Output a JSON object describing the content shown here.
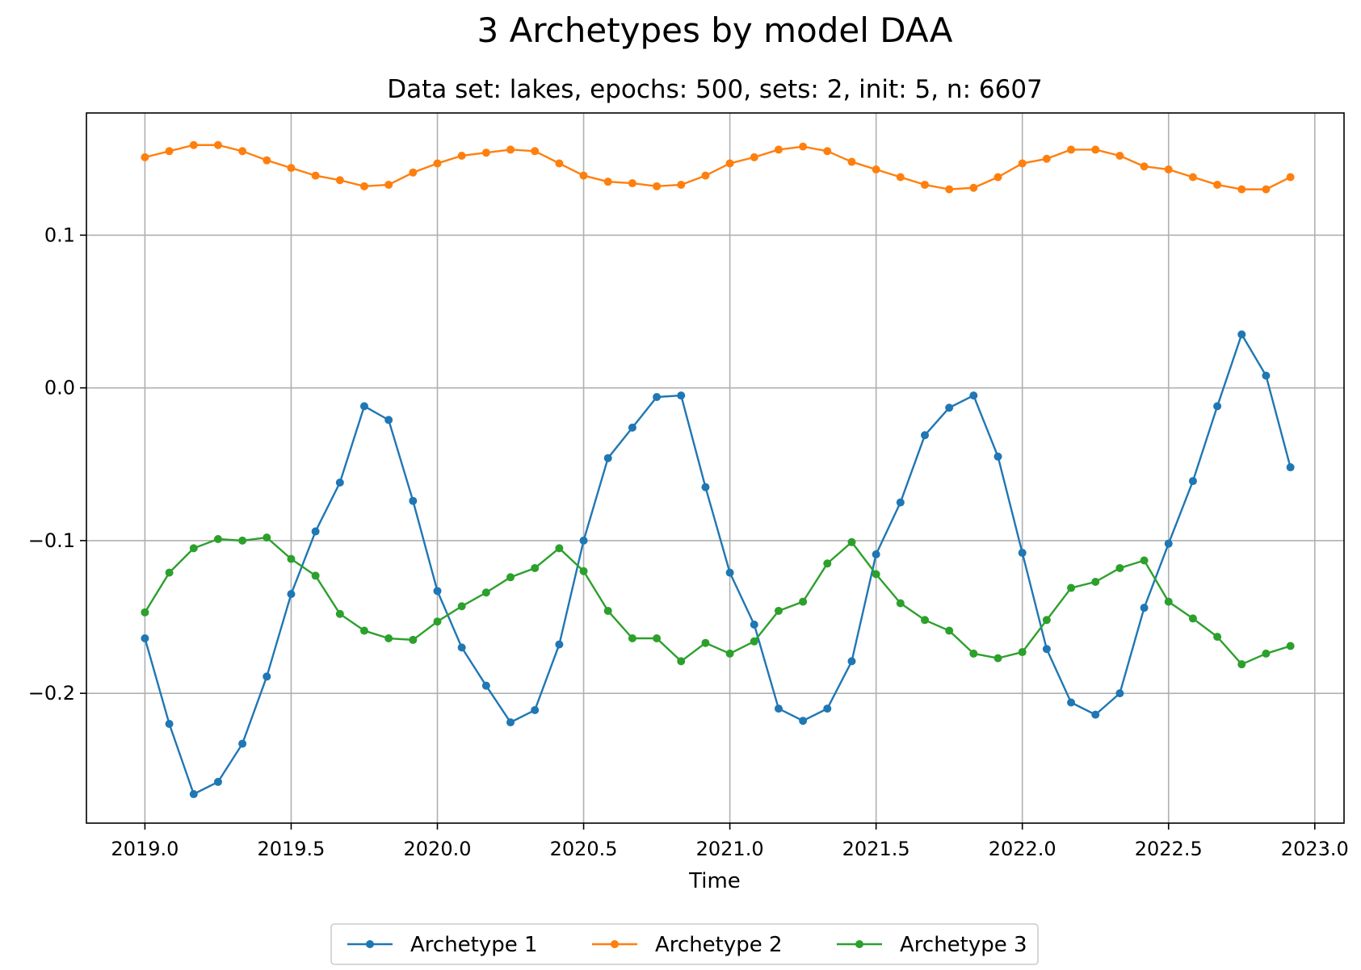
{
  "chart_data": {
    "type": "line",
    "title": "3 Archetypes by model DAA",
    "subtitle": "Data set: lakes, epochs: 500, sets: 2, init: 5, n: 6607",
    "xlabel": "Time",
    "ylabel": "",
    "xlim": [
      2018.8,
      2023.1
    ],
    "ylim": [
      -0.285,
      0.18
    ],
    "x_ticks": [
      2019.0,
      2019.5,
      2020.0,
      2020.5,
      2021.0,
      2021.5,
      2022.0,
      2022.5,
      2023.0
    ],
    "x_tick_labels": [
      "2019.0",
      "2019.5",
      "2020.0",
      "2020.5",
      "2021.0",
      "2021.5",
      "2022.0",
      "2022.5",
      "2023.0"
    ],
    "y_ticks": [
      0.1,
      0.0,
      -0.1,
      -0.2
    ],
    "y_tick_labels": [
      "0.1",
      "0.0",
      "−0.1",
      "−0.2"
    ],
    "grid": true,
    "legend_position": "bottom-center",
    "x": [
      2019.0,
      2019.0833,
      2019.1667,
      2019.25,
      2019.3333,
      2019.4167,
      2019.5,
      2019.5833,
      2019.6667,
      2019.75,
      2019.8333,
      2019.9167,
      2020.0,
      2020.0833,
      2020.1667,
      2020.25,
      2020.3333,
      2020.4167,
      2020.5,
      2020.5833,
      2020.6667,
      2020.75,
      2020.8333,
      2020.9167,
      2021.0,
      2021.0833,
      2021.1667,
      2021.25,
      2021.3333,
      2021.4167,
      2021.5,
      2021.5833,
      2021.6667,
      2021.75,
      2021.8333,
      2021.9167,
      2022.0,
      2022.0833,
      2022.1667,
      2022.25,
      2022.3333,
      2022.4167,
      2022.5,
      2022.5833,
      2022.6667,
      2022.75,
      2022.8333,
      2022.9167
    ],
    "series": [
      {
        "name": "Archetype 1",
        "color": "#1f77b4",
        "values": [
          -0.164,
          -0.22,
          -0.266,
          -0.258,
          -0.233,
          -0.189,
          -0.135,
          -0.094,
          -0.062,
          -0.012,
          -0.021,
          -0.074,
          -0.133,
          -0.17,
          -0.195,
          -0.219,
          -0.211,
          -0.168,
          -0.1,
          -0.046,
          -0.026,
          -0.006,
          -0.005,
          -0.065,
          -0.121,
          -0.155,
          -0.21,
          -0.218,
          -0.21,
          -0.179,
          -0.109,
          -0.075,
          -0.031,
          -0.013,
          -0.005,
          -0.045,
          -0.108,
          -0.171,
          -0.206,
          -0.214,
          -0.2,
          -0.144,
          -0.102,
          -0.061,
          -0.012,
          0.035,
          0.008,
          -0.052
        ]
      },
      {
        "name": "Archetype 2",
        "color": "#ff7f0e",
        "values": [
          0.151,
          0.155,
          0.159,
          0.159,
          0.155,
          0.149,
          0.144,
          0.139,
          0.136,
          0.132,
          0.133,
          0.141,
          0.147,
          0.152,
          0.154,
          0.156,
          0.155,
          0.147,
          0.139,
          0.135,
          0.134,
          0.132,
          0.133,
          0.139,
          0.147,
          0.151,
          0.156,
          0.158,
          0.155,
          0.148,
          0.143,
          0.138,
          0.133,
          0.13,
          0.131,
          0.138,
          0.147,
          0.15,
          0.156,
          0.156,
          0.152,
          0.145,
          0.143,
          0.138,
          0.133,
          0.13,
          0.13,
          0.138
        ]
      },
      {
        "name": "Archetype 3",
        "color": "#2ca02c",
        "values": [
          -0.147,
          -0.121,
          -0.105,
          -0.099,
          -0.1,
          -0.098,
          -0.112,
          -0.123,
          -0.148,
          -0.159,
          -0.164,
          -0.165,
          -0.153,
          -0.143,
          -0.134,
          -0.124,
          -0.118,
          -0.105,
          -0.12,
          -0.146,
          -0.164,
          -0.164,
          -0.179,
          -0.167,
          -0.174,
          -0.166,
          -0.146,
          -0.14,
          -0.115,
          -0.101,
          -0.122,
          -0.141,
          -0.152,
          -0.159,
          -0.174,
          -0.177,
          -0.173,
          -0.152,
          -0.131,
          -0.127,
          -0.118,
          -0.113,
          -0.14,
          -0.151,
          -0.163,
          -0.181,
          -0.174,
          -0.169
        ]
      }
    ]
  }
}
